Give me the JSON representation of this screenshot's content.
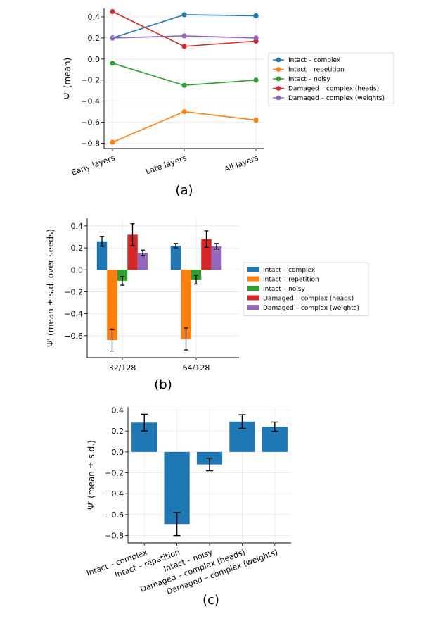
{
  "chart_data": [
    {
      "type": "line",
      "caption": "(a)",
      "ylabel": "Ψ′ (mean)",
      "categories": [
        "Early layers",
        "Late layers",
        "All layers"
      ],
      "ylim": [
        -0.85,
        0.48
      ],
      "yticks": [
        "0.4",
        "0.2",
        "0.0",
        "−0.2",
        "−0.4",
        "−0.6",
        "−0.8"
      ],
      "grid": true,
      "legend": "right",
      "series": [
        {
          "name": "Intact – complex",
          "color": "#1f77b4",
          "values": [
            0.2,
            0.42,
            0.41
          ]
        },
        {
          "name": "Intact – repetition",
          "color": "#ff7f0e",
          "values": [
            -0.79,
            -0.5,
            -0.58
          ]
        },
        {
          "name": "Intact – noisy",
          "color": "#2ca02c",
          "values": [
            -0.04,
            -0.25,
            -0.2
          ]
        },
        {
          "name": "Damaged – complex (heads)",
          "color": "#d62728",
          "values": [
            0.45,
            0.12,
            0.17
          ]
        },
        {
          "name": "Damaged – complex (weights)",
          "color": "#9467bd",
          "values": [
            0.2,
            0.22,
            0.2
          ]
        }
      ]
    },
    {
      "type": "bar",
      "caption": "(b)",
      "ylabel": "Ψ′ (mean ± s.d. over seeds)",
      "categories": [
        "32/128",
        "64/128"
      ],
      "ylim": [
        -0.8,
        0.47
      ],
      "yticks": [
        "0.4",
        "0.2",
        "0.0",
        "−0.2",
        "−0.4",
        "−0.6"
      ],
      "grid": true,
      "legend": "right",
      "series": [
        {
          "name": "Intact – complex",
          "color": "#1f77b4",
          "values": [
            0.26,
            0.22
          ],
          "sd": [
            0.045,
            0.02
          ]
        },
        {
          "name": "Intact – repetition",
          "color": "#ff7f0e",
          "values": [
            -0.64,
            -0.63
          ],
          "sd": [
            0.1,
            0.1
          ]
        },
        {
          "name": "Intact – noisy",
          "color": "#2ca02c",
          "values": [
            -0.1,
            -0.09
          ],
          "sd": [
            0.04,
            0.04
          ]
        },
        {
          "name": "Damaged – complex (heads)",
          "color": "#d62728",
          "values": [
            0.32,
            0.28
          ],
          "sd": [
            0.1,
            0.075
          ]
        },
        {
          "name": "Damaged – complex (weights)",
          "color": "#9467bd",
          "values": [
            0.155,
            0.215
          ],
          "sd": [
            0.025,
            0.025
          ]
        }
      ]
    },
    {
      "type": "bar",
      "caption": "(c)",
      "ylabel": "Ψ′ (mean ± s.d.)",
      "categories": [
        "Intact – complex",
        "Intact – repetition",
        "Intact – noisy",
        "Damaged – complex (heads)",
        "Damaged – complex (weights)"
      ],
      "ylim": [
        -0.87,
        0.43
      ],
      "yticks": [
        "0.4",
        "0.2",
        "0.0",
        "−0.2",
        "−0.4",
        "−0.6",
        "−0.8"
      ],
      "grid": true,
      "series": [
        {
          "name": "Ψ′",
          "color": "#1f77b4",
          "values": [
            0.28,
            -0.69,
            -0.12,
            0.29,
            0.24
          ],
          "sd": [
            0.08,
            0.11,
            0.06,
            0.065,
            0.045
          ]
        }
      ]
    }
  ]
}
